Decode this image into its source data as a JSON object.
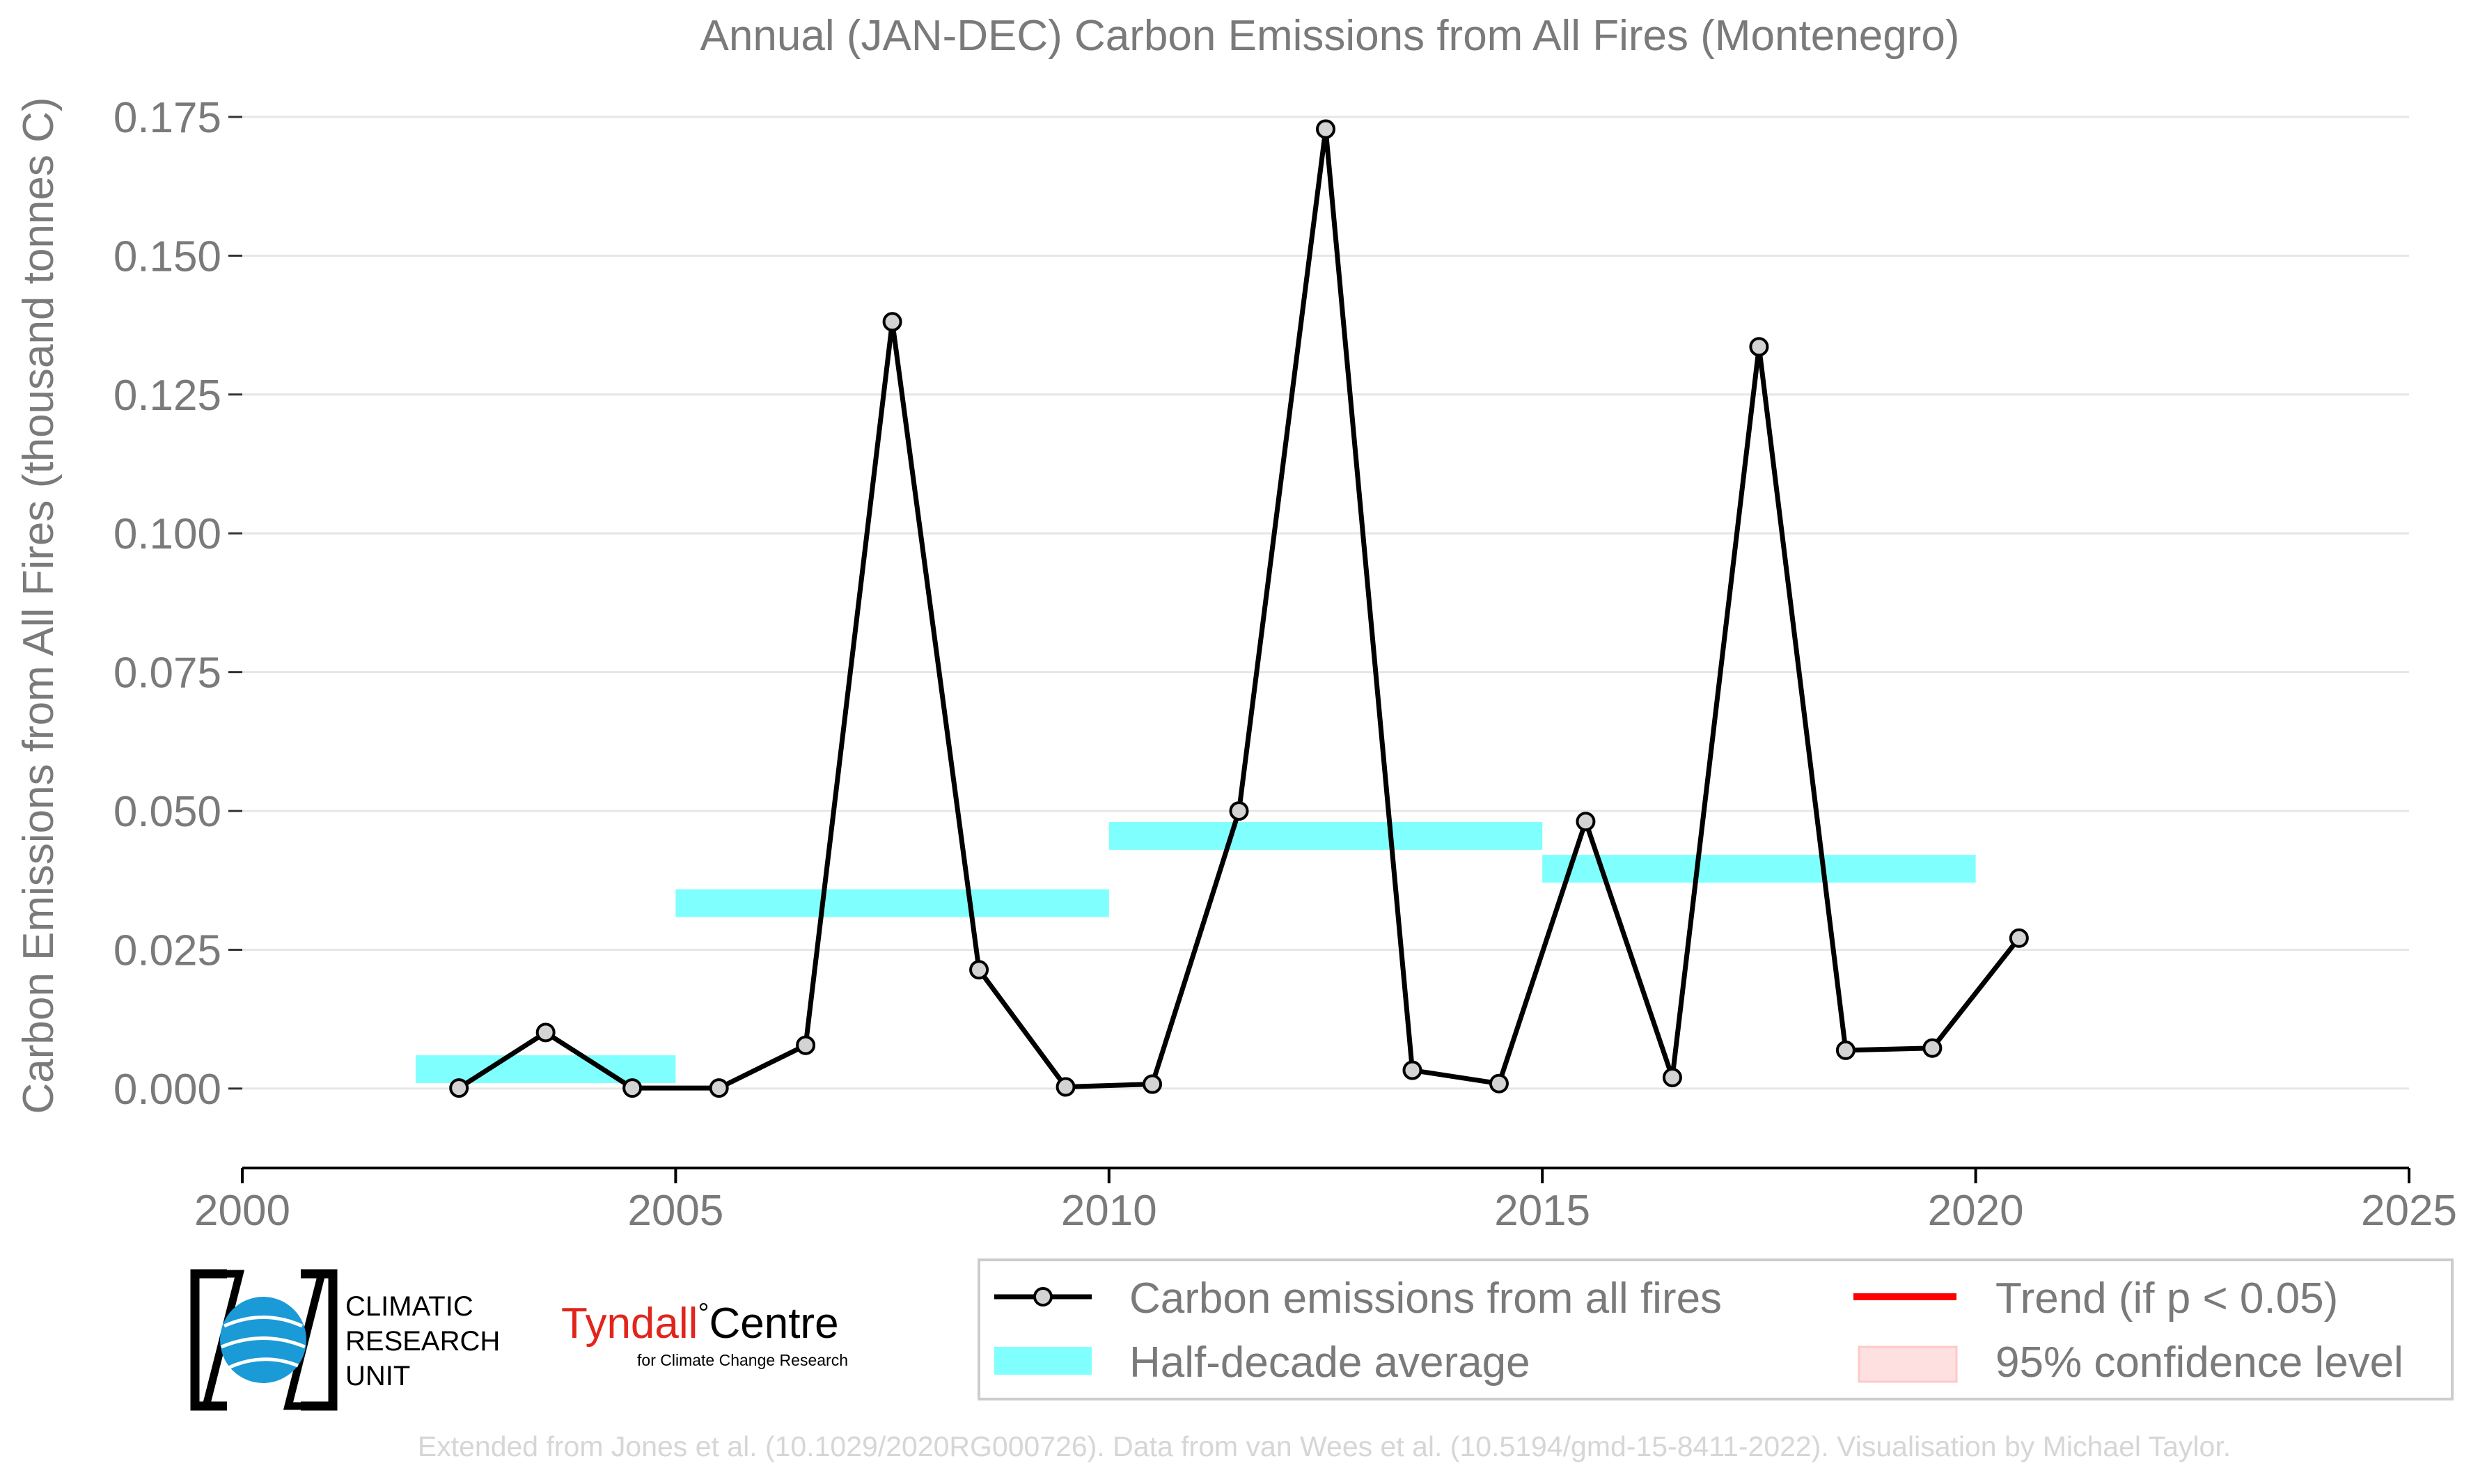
{
  "chart_data": {
    "type": "line",
    "title": "Annual (JAN-DEC) Carbon Emissions from All Fires (Montenegro)",
    "xlabel": "",
    "ylabel": "Carbon Emissions from All Fires (thousand tonnes C)",
    "xlim": [
      2000,
      2025
    ],
    "ylim": [
      -0.0143,
      0.177
    ],
    "x_ticks": [
      2000,
      2005,
      2010,
      2015,
      2020,
      2025
    ],
    "y_ticks": [
      0.0,
      0.025,
      0.05,
      0.075,
      0.1,
      0.125,
      0.15,
      0.175
    ],
    "y_tick_labels": [
      "0.000",
      "0.025",
      "0.050",
      "0.075",
      "0.100",
      "0.125",
      "0.150",
      "0.175"
    ],
    "grid": "horizontal",
    "legend_position": "bottom-right",
    "series": [
      {
        "name": "Carbon emissions from all fires",
        "color": "#000000",
        "marker_fill": "#d3d3d3",
        "x": [
          2002.5,
          2003.5,
          2004.5,
          2005.5,
          2006.5,
          2007.5,
          2008.5,
          2009.5,
          2010.5,
          2011.5,
          2012.5,
          2013.5,
          2014.5,
          2015.5,
          2016.5,
          2017.5,
          2018.5,
          2019.5,
          2020.5
        ],
        "y": [
          0.0001,
          0.0101,
          0.0001,
          0.0001,
          0.0078,
          0.1381,
          0.0214,
          0.0003,
          0.0008,
          0.05,
          0.1728,
          0.0033,
          0.0009,
          0.0481,
          0.002,
          0.1336,
          0.0069,
          0.0073,
          0.0271
        ]
      }
    ],
    "half_decade_average": {
      "name": "Half-decade average",
      "color": "#80ffff",
      "segments": [
        {
          "x_start": 2002,
          "x_end": 2005,
          "y": 0.0035
        },
        {
          "x_start": 2005,
          "x_end": 2010,
          "y": 0.0334
        },
        {
          "x_start": 2010,
          "x_end": 2015,
          "y": 0.0455
        },
        {
          "x_start": 2015,
          "x_end": 2020,
          "y": 0.0396
        }
      ]
    },
    "legend": [
      {
        "label": "Carbon emissions from all fires",
        "kind": "line-marker",
        "color": "#000000"
      },
      {
        "label": "Trend (if p < 0.05)",
        "kind": "line",
        "color": "#ff0000"
      },
      {
        "label": "Half-decade average",
        "kind": "band",
        "color": "#80ffff"
      },
      {
        "label": "95% confidence level",
        "kind": "band",
        "color": "#ffdede"
      }
    ]
  },
  "logos": {
    "cru_lines": [
      "CLIMATIC",
      "RESEARCH",
      "UNIT"
    ],
    "tyndall_main": "Tyndall",
    "tyndall_degree": "°",
    "tyndall_centre": "Centre",
    "tyndall_sub": "for Climate Change Research",
    "tyndall_color": "#e1251b"
  },
  "footer": {
    "credit": "Extended from Jones et al. (10.1029/2020RG000726). Data from van Wees et al. (10.5194/gmd-15-8411-2022). Visualisation by Michael Taylor."
  }
}
